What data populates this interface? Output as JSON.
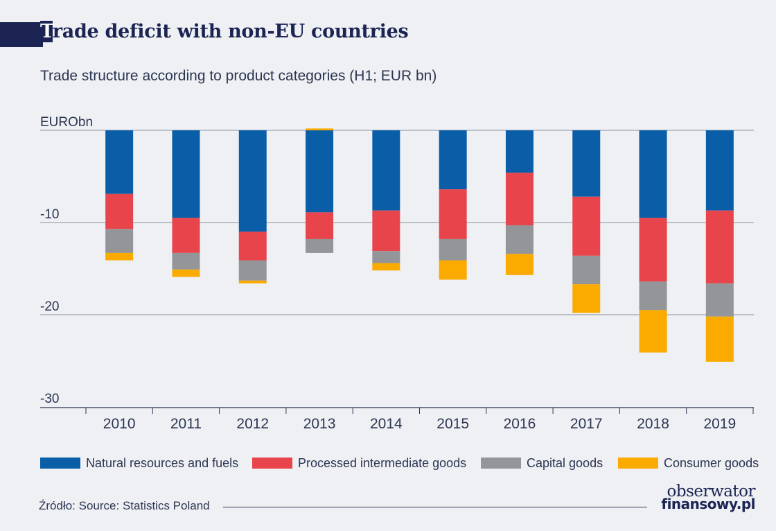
{
  "header": {
    "title_first_letter": "T",
    "title_rest": "rade deficit with non-EU countries",
    "subtitle": "Trade structure according to product categories (H1; EUR bn)"
  },
  "footer": {
    "source": "Źródło: Source: Statistics Poland",
    "logo_top": "obserwator",
    "logo_bottom": "finansowy.pl"
  },
  "chart_data": {
    "type": "bar",
    "stacked": true,
    "title": "Trade deficit with non-EU countries",
    "subtitle": "Trade structure according to product categories (H1; EUR bn)",
    "ylabel": "EURO bn",
    "ytick_labels": [
      "EURObn",
      "-10",
      "-20",
      "-30"
    ],
    "yticks": [
      0,
      -10,
      -20,
      -30
    ],
    "ylim": [
      -30,
      0
    ],
    "grid": true,
    "legend_position": "bottom",
    "categories": [
      "2010",
      "2011",
      "2012",
      "2013",
      "2014",
      "2015",
      "2016",
      "2017",
      "2018",
      "2019"
    ],
    "series": [
      {
        "name": "Natural resources and fuels",
        "color": "#0a5ea8",
        "values": [
          -6.9,
          -9.5,
          -11.0,
          -8.9,
          -8.7,
          -6.4,
          -4.6,
          -7.2,
          -9.5,
          -8.7
        ]
      },
      {
        "name": "Processed intermediate goods",
        "color": "#e8444b",
        "values": [
          -3.8,
          -3.8,
          -3.1,
          -2.9,
          -4.4,
          -5.4,
          -5.7,
          -6.4,
          -6.9,
          -7.9
        ]
      },
      {
        "name": "Capital goods",
        "color": "#939598",
        "values": [
          -2.6,
          -1.8,
          -2.2,
          -1.5,
          -1.3,
          -2.3,
          -3.1,
          -3.1,
          -3.1,
          -3.6
        ]
      },
      {
        "name": "Consumer goods",
        "color": "#fbaa00",
        "values": [
          -0.8,
          -0.8,
          -0.3,
          0.2,
          -0.8,
          -2.1,
          -2.3,
          -3.1,
          -4.6,
          -4.9
        ]
      }
    ]
  }
}
